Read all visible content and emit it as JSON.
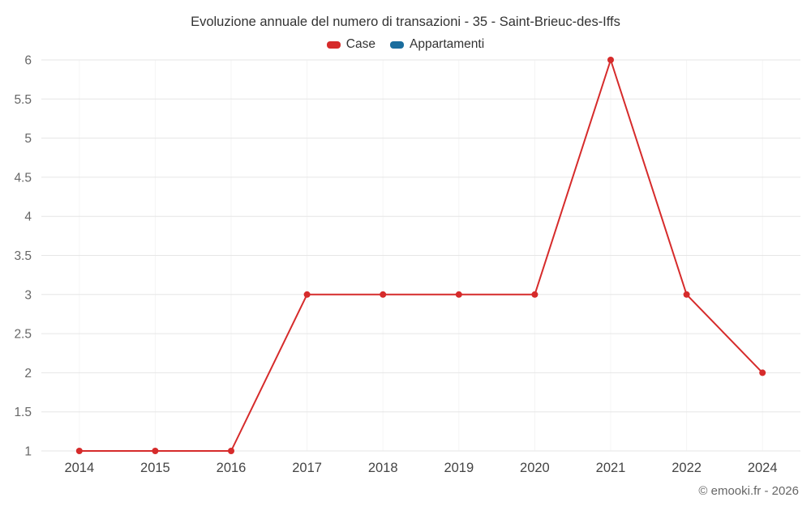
{
  "chart_data": {
    "type": "line",
    "title": "Evoluzione annuale del numero di transazioni - 35 - Saint-Brieuc-des-Iffs",
    "categories": [
      "2014",
      "2015",
      "2016",
      "2017",
      "2018",
      "2019",
      "2020",
      "2021",
      "2022",
      "2024"
    ],
    "series": [
      {
        "name": "Case",
        "color": "#d62b2b",
        "values": [
          1,
          1,
          1,
          3,
          3,
          3,
          3,
          6,
          3,
          2
        ]
      },
      {
        "name": "Appartamenti",
        "color": "#1a6d9e",
        "values": []
      }
    ],
    "xlabel": "",
    "ylabel": "",
    "ylim": [
      1,
      6
    ],
    "ytick_step": 0.5,
    "grid": true,
    "legend_position": "top",
    "grid_color": "#e6e6e6",
    "axis_label_color": "#666666"
  },
  "footer": {
    "credit": "© emooki.fr - 2026"
  }
}
